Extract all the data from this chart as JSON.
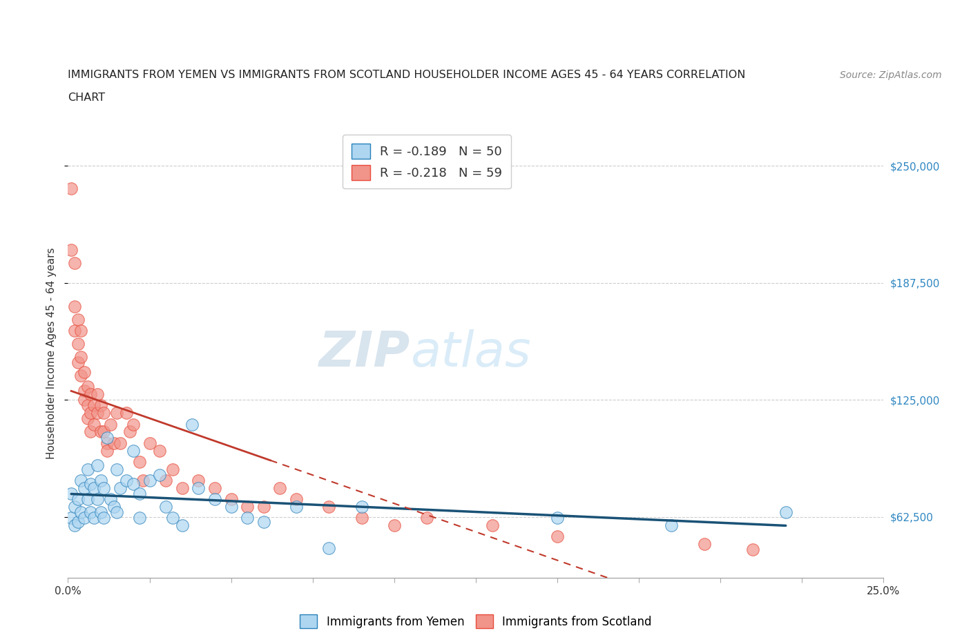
{
  "title_line1": "IMMIGRANTS FROM YEMEN VS IMMIGRANTS FROM SCOTLAND HOUSEHOLDER INCOME AGES 45 - 64 YEARS CORRELATION",
  "title_line2": "CHART",
  "source_text": "Source: ZipAtlas.com",
  "ylabel": "Householder Income Ages 45 - 64 years",
  "xlim": [
    0.0,
    0.25
  ],
  "ylim": [
    30000,
    270000
  ],
  "yticks": [
    62500,
    125000,
    187500,
    250000
  ],
  "ytick_labels": [
    "$62,500",
    "$125,000",
    "$187,500",
    "$250,000"
  ],
  "xticks": [
    0.0,
    0.025,
    0.05,
    0.075,
    0.1,
    0.125,
    0.15,
    0.175,
    0.2,
    0.225,
    0.25
  ],
  "xtick_labels_show": [
    "0.0%",
    "",
    "",
    "",
    "",
    "",
    "",
    "",
    "",
    "",
    "25.0%"
  ],
  "yemen_color": "#aed6f1",
  "scotland_color": "#f1948a",
  "yemen_edge_color": "#2980b9",
  "scotland_edge_color": "#e74c3c",
  "yemen_line_color": "#1a5276",
  "scotland_line_color": "#c0392b",
  "r_yemen": -0.189,
  "n_yemen": 50,
  "r_scotland": -0.218,
  "n_scotland": 59,
  "watermark_zip": "ZIP",
  "watermark_atlas": "atlas",
  "legend_label_yemen": "Immigrants from Yemen",
  "legend_label_scotland": "Immigrants from Scotland",
  "yemen_x": [
    0.001,
    0.001,
    0.002,
    0.002,
    0.003,
    0.003,
    0.004,
    0.004,
    0.005,
    0.005,
    0.006,
    0.006,
    0.007,
    0.007,
    0.008,
    0.008,
    0.009,
    0.009,
    0.01,
    0.01,
    0.011,
    0.011,
    0.012,
    0.013,
    0.014,
    0.015,
    0.015,
    0.016,
    0.018,
    0.02,
    0.02,
    0.022,
    0.022,
    0.025,
    0.028,
    0.03,
    0.032,
    0.035,
    0.038,
    0.04,
    0.045,
    0.05,
    0.055,
    0.06,
    0.07,
    0.08,
    0.09,
    0.15,
    0.185,
    0.22
  ],
  "yemen_y": [
    75000,
    62000,
    68000,
    58000,
    72000,
    60000,
    82000,
    65000,
    78000,
    62000,
    88000,
    72000,
    80000,
    65000,
    78000,
    62000,
    90000,
    72000,
    82000,
    65000,
    78000,
    62000,
    105000,
    72000,
    68000,
    88000,
    65000,
    78000,
    82000,
    98000,
    80000,
    75000,
    62000,
    82000,
    85000,
    68000,
    62000,
    58000,
    112000,
    78000,
    72000,
    68000,
    62000,
    60000,
    68000,
    46000,
    68000,
    62000,
    58000,
    65000
  ],
  "scotland_x": [
    0.001,
    0.001,
    0.002,
    0.002,
    0.002,
    0.003,
    0.003,
    0.003,
    0.004,
    0.004,
    0.004,
    0.005,
    0.005,
    0.005,
    0.006,
    0.006,
    0.006,
    0.007,
    0.007,
    0.007,
    0.008,
    0.008,
    0.009,
    0.009,
    0.01,
    0.01,
    0.011,
    0.011,
    0.012,
    0.012,
    0.013,
    0.014,
    0.015,
    0.016,
    0.018,
    0.019,
    0.02,
    0.022,
    0.023,
    0.025,
    0.028,
    0.03,
    0.032,
    0.035,
    0.04,
    0.045,
    0.05,
    0.055,
    0.06,
    0.065,
    0.07,
    0.08,
    0.09,
    0.1,
    0.11,
    0.13,
    0.15,
    0.195,
    0.21
  ],
  "scotland_y": [
    238000,
    205000,
    198000,
    175000,
    162000,
    168000,
    155000,
    145000,
    162000,
    148000,
    138000,
    140000,
    130000,
    125000,
    132000,
    122000,
    115000,
    128000,
    118000,
    108000,
    122000,
    112000,
    128000,
    118000,
    122000,
    108000,
    118000,
    108000,
    102000,
    98000,
    112000,
    102000,
    118000,
    102000,
    118000,
    108000,
    112000,
    92000,
    82000,
    102000,
    98000,
    82000,
    88000,
    78000,
    82000,
    78000,
    72000,
    68000,
    68000,
    78000,
    72000,
    68000,
    62000,
    58000,
    62000,
    58000,
    52000,
    48000,
    45000
  ]
}
